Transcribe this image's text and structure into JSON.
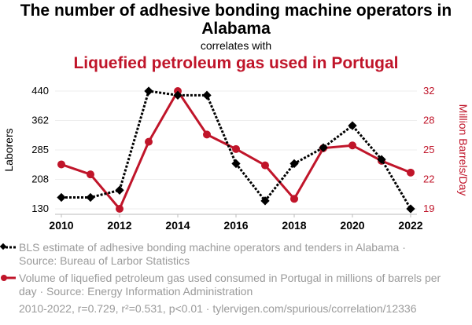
{
  "title": "The number of adhesive bonding machine operators in Alabama",
  "correlates": "correlates with",
  "title2": "Liquefied petroleum gas used in Portugal",
  "colors": {
    "series1": "#000000",
    "series2": "#c0152a",
    "legend_text": "#9a9a9a"
  },
  "chart_data": {
    "type": "line",
    "x": [
      2010,
      2011,
      2012,
      2013,
      2014,
      2015,
      2016,
      2017,
      2018,
      2019,
      2020,
      2021,
      2022
    ],
    "x_ticks": [
      "2010",
      "2012",
      "2014",
      "2016",
      "2018",
      "2020",
      "2022"
    ],
    "ylabel_left": "Laborers",
    "ylabel_right": "Million Barrels/Day",
    "ylim_left": [
      130,
      440
    ],
    "ylim_right": [
      19,
      32
    ],
    "yticks_left": [
      "130",
      "208",
      "285",
      "362",
      "440"
    ],
    "yticks_right": [
      "19",
      "22",
      "25",
      "28",
      "32"
    ],
    "grid": true,
    "series": [
      {
        "name": "BLS estimate of adhesive bonding machine operators and tenders in Alabama · Source: Bureau of Larbor Statistics",
        "axis": "left",
        "style": "dotted",
        "marker": "diamond",
        "values": [
          160,
          160,
          179,
          440,
          429,
          429,
          249,
          151,
          249,
          291,
          349,
          260,
          130
        ]
      },
      {
        "name": "Volume of liquefied petroleum gas used consumed in Portugal in millions of barrels per day · Source: Energy Information Administration",
        "axis": "right",
        "style": "solid",
        "marker": "circle",
        "values": [
          23.9,
          22.8,
          19,
          26.4,
          32,
          27.2,
          25.6,
          23.8,
          20.1,
          25.7,
          26.0,
          24.3,
          23.0
        ]
      }
    ]
  },
  "footer": "2010-2022, r=0.729, r²=0.531, p<0.01 · tylervigen.com/spurious/correlation/12336"
}
